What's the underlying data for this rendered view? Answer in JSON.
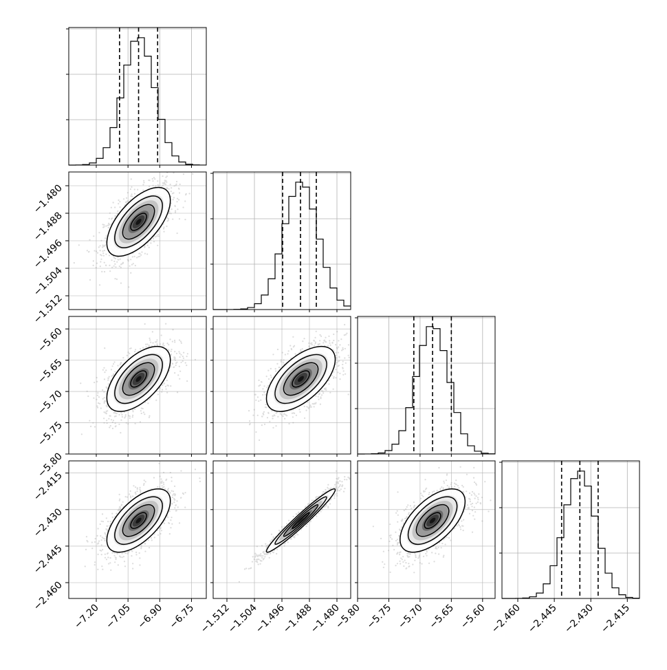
{
  "chart_data": {
    "type": "corner",
    "title": "",
    "parameters": [
      {
        "name": "",
        "range": [
          -7.33,
          -6.68
        ],
        "ticks": [
          -7.2,
          -7.05,
          -6.9,
          -6.75
        ],
        "tick_labels": [
          "−7.20",
          "−7.05",
          "−6.90",
          "−6.75"
        ],
        "quantiles": [
          -7.09,
          -7.0,
          -6.91
        ],
        "mean": -7.0,
        "sd": 0.075
      },
      {
        "name": "",
        "range": [
          -1.516,
          -1.476
        ],
        "ticks": [
          -1.512,
          -1.504,
          -1.496,
          -1.488,
          -1.48
        ],
        "tick_labels": [
          "−1.512",
          "−1.504",
          "−1.496",
          "−1.488",
          "−1.480"
        ],
        "quantiles": [
          -1.4958,
          -1.4906,
          -1.486
        ],
        "mean": -1.4905,
        "sd": 0.005
      },
      {
        "name": "",
        "range": [
          -5.8,
          -5.58
        ],
        "ticks": [
          -5.8,
          -5.75,
          -5.7,
          -5.65,
          -5.6
        ],
        "tick_labels": [
          "−5.80",
          "−5.75",
          "−5.70",
          "−5.65",
          "−5.60"
        ],
        "quantiles": [
          -5.71,
          -5.68,
          -5.65
        ],
        "mean": -5.68,
        "sd": 0.026
      },
      {
        "name": "",
        "range": [
          -2.4665,
          -2.41
        ],
        "ticks": [
          -2.46,
          -2.445,
          -2.43,
          -2.415
        ],
        "tick_labels": [
          "−2.460",
          "−2.445",
          "−2.430",
          "−2.415"
        ],
        "quantiles": [
          -2.442,
          -2.4345,
          -2.427
        ],
        "mean": -2.4345,
        "sd": 0.0065
      }
    ],
    "correlations": {
      "1-0": 0.62,
      "2-0": 0.58,
      "2-1": 0.6,
      "3-0": 0.62,
      "3-1": 0.97,
      "3-2": 0.6
    },
    "contour_levels_sigma": [
      0.5,
      1.0,
      1.5,
      2.0
    ],
    "histogram_bins": 20,
    "grid": true,
    "colors": {
      "hist": "#000000",
      "quantile": "#000000",
      "scatter": "#9a9a9a",
      "grid": "#b0b0b0"
    }
  }
}
